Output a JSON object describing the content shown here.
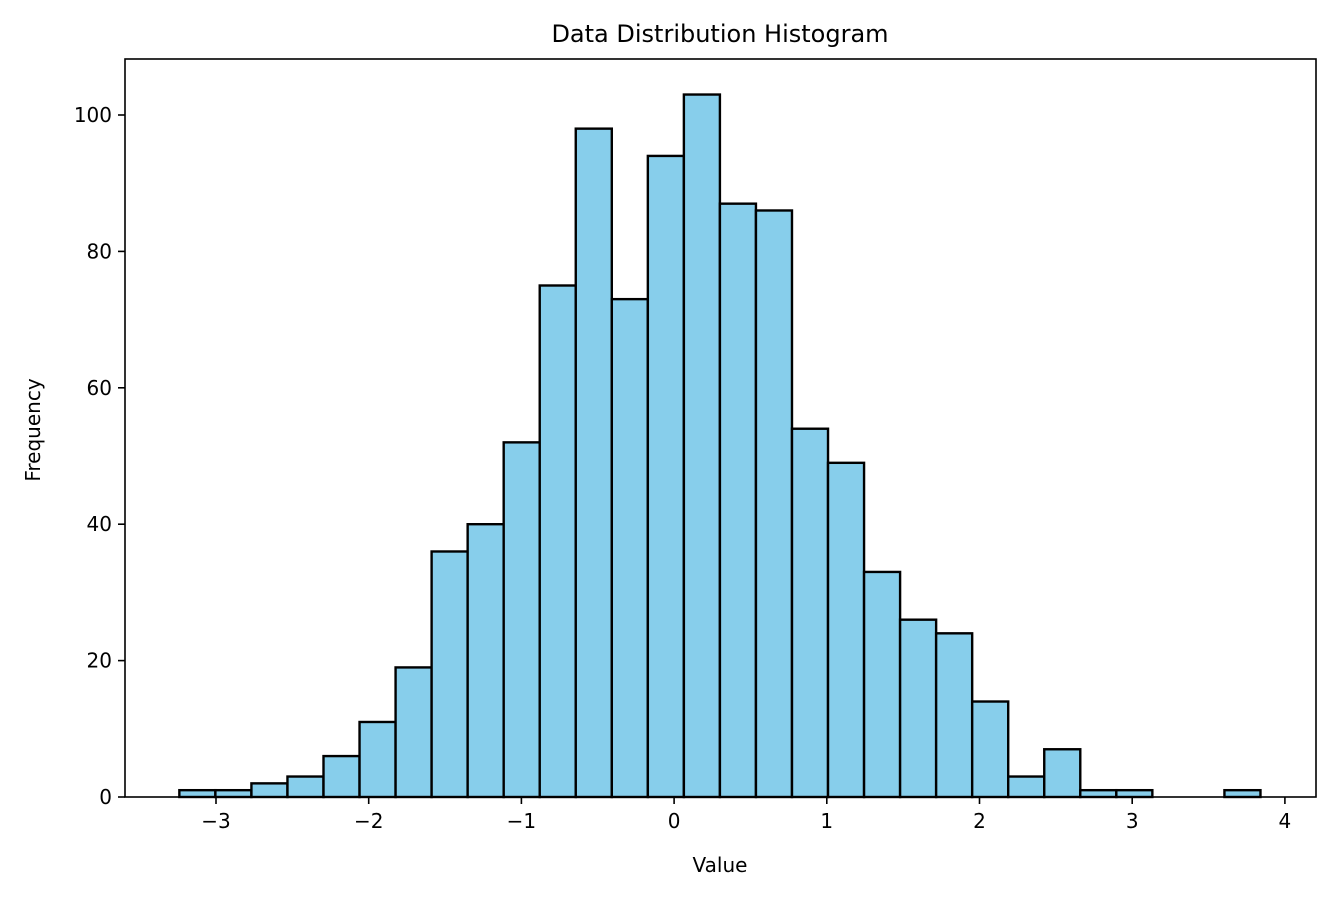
{
  "chart_data": {
    "type": "bar",
    "subtype": "histogram",
    "title": "Data Distribution Histogram",
    "xlabel": "Value",
    "ylabel": "Frequency",
    "bin_start": -3.24,
    "bin_width": 0.236,
    "values": [
      1,
      1,
      2,
      3,
      6,
      11,
      19,
      36,
      40,
      52,
      75,
      98,
      73,
      94,
      103,
      87,
      86,
      54,
      49,
      33,
      26,
      24,
      14,
      3,
      7,
      1,
      1,
      0,
      0,
      1
    ],
    "xlim": [
      -3.6,
      4.2
    ],
    "ylim": [
      0,
      108
    ],
    "xticks": [
      -3,
      -2,
      -1,
      0,
      1,
      2,
      3,
      4
    ],
    "xtick_labels": [
      "−3",
      "−2",
      "−1",
      "0",
      "1",
      "2",
      "3",
      "4"
    ],
    "yticks": [
      0,
      20,
      40,
      60,
      80,
      100
    ],
    "ytick_labels": [
      "0",
      "20",
      "40",
      "60",
      "80",
      "100"
    ],
    "bar_color": "#87ceeb",
    "edge_color": "#000000",
    "grid": false
  }
}
